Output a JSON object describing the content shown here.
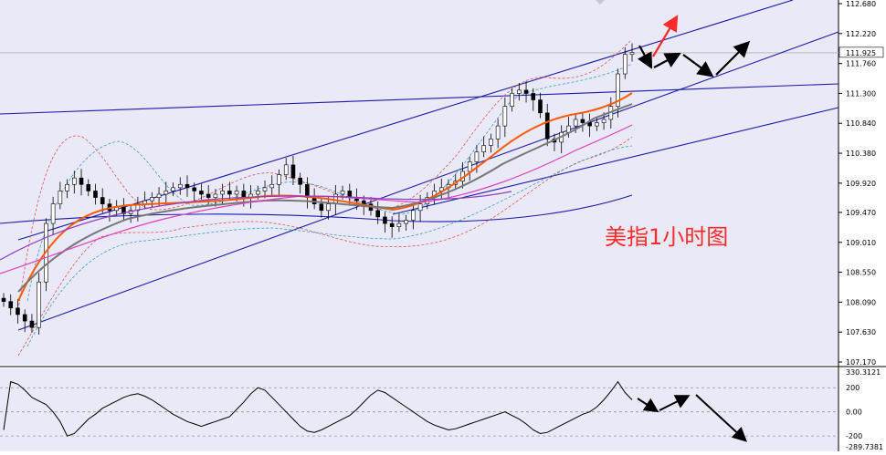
{
  "chart_data": [
    {
      "type": "candlestick",
      "title": "美指1小时图",
      "ylim": [
        107.17,
        112.68
      ],
      "y_ticks": [
        {
          "label": "112.680",
          "value": 112.68
        },
        {
          "label": "112.220",
          "value": 112.22
        },
        {
          "label": "111.760",
          "value": 111.76
        },
        {
          "label": "111.300",
          "value": 111.3
        },
        {
          "label": "110.840",
          "value": 110.84
        },
        {
          "label": "110.380",
          "value": 110.38
        },
        {
          "label": "109.920",
          "value": 109.92
        },
        {
          "label": "109.470",
          "value": 109.47
        },
        {
          "label": "109.010",
          "value": 109.01
        },
        {
          "label": "108.550",
          "value": 108.55
        },
        {
          "label": "108.090",
          "value": 108.09
        },
        {
          "label": "107.630",
          "value": 107.63
        },
        {
          "label": "107.170",
          "value": 107.17
        }
      ],
      "current_price": {
        "label": "111.925",
        "value": 111.925
      },
      "closes": [
        108.1,
        108.0,
        107.9,
        107.8,
        107.7,
        108.4,
        109.3,
        109.6,
        109.8,
        109.9,
        110.0,
        109.9,
        109.8,
        109.7,
        109.6,
        109.5,
        109.55,
        109.45,
        109.5,
        109.6,
        109.65,
        109.7,
        109.75,
        109.8,
        109.85,
        109.9,
        109.85,
        109.8,
        109.75,
        109.7,
        109.75,
        109.8,
        109.75,
        109.8,
        109.7,
        109.75,
        109.8,
        109.85,
        109.9,
        110.05,
        110.2,
        110.0,
        109.9,
        109.7,
        109.6,
        109.5,
        109.6,
        109.75,
        109.8,
        109.7,
        109.65,
        109.6,
        109.5,
        109.4,
        109.3,
        109.25,
        109.3,
        109.35,
        109.5,
        109.6,
        109.7,
        109.8,
        109.85,
        109.9,
        109.95,
        110.1,
        110.25,
        110.4,
        110.5,
        110.6,
        110.8,
        111.1,
        111.3,
        111.35,
        111.3,
        111.2,
        111.0,
        110.6,
        110.55,
        110.7,
        110.8,
        110.9,
        110.85,
        110.8,
        110.85,
        110.9,
        111.1,
        111.6,
        111.9,
        111.93
      ]
    },
    {
      "type": "line",
      "title": "",
      "ylim": [
        -289.7381,
        330.3121
      ],
      "y_ticks": [
        {
          "label": "330.3121",
          "value": 330.3121
        },
        {
          "label": "200",
          "value": 200
        },
        {
          "label": "0.00",
          "value": 0
        },
        {
          "label": "-200",
          "value": -200
        },
        {
          "label": "-289.7381",
          "value": -289.7381
        }
      ],
      "values": [
        -150,
        250,
        230,
        180,
        120,
        90,
        60,
        0,
        -80,
        -200,
        -180,
        -120,
        -60,
        -20,
        30,
        60,
        90,
        120,
        140,
        150,
        130,
        100,
        60,
        20,
        -20,
        -50,
        -80,
        -100,
        -120,
        -100,
        -80,
        -60,
        -40,
        20,
        80,
        150,
        200,
        180,
        120,
        60,
        0,
        -60,
        -120,
        -160,
        -170,
        -150,
        -120,
        -90,
        -60,
        -30,
        20,
        80,
        140,
        180,
        160,
        120,
        80,
        40,
        0,
        -40,
        -80,
        -110,
        -130,
        -150,
        -140,
        -120,
        -100,
        -80,
        -60,
        -40,
        -20,
        0,
        -30,
        -60,
        -100,
        -150,
        -180,
        -170,
        -140,
        -110,
        -80,
        -50,
        -20,
        0,
        40,
        100,
        170,
        250,
        160,
        100
      ]
    }
  ]
}
